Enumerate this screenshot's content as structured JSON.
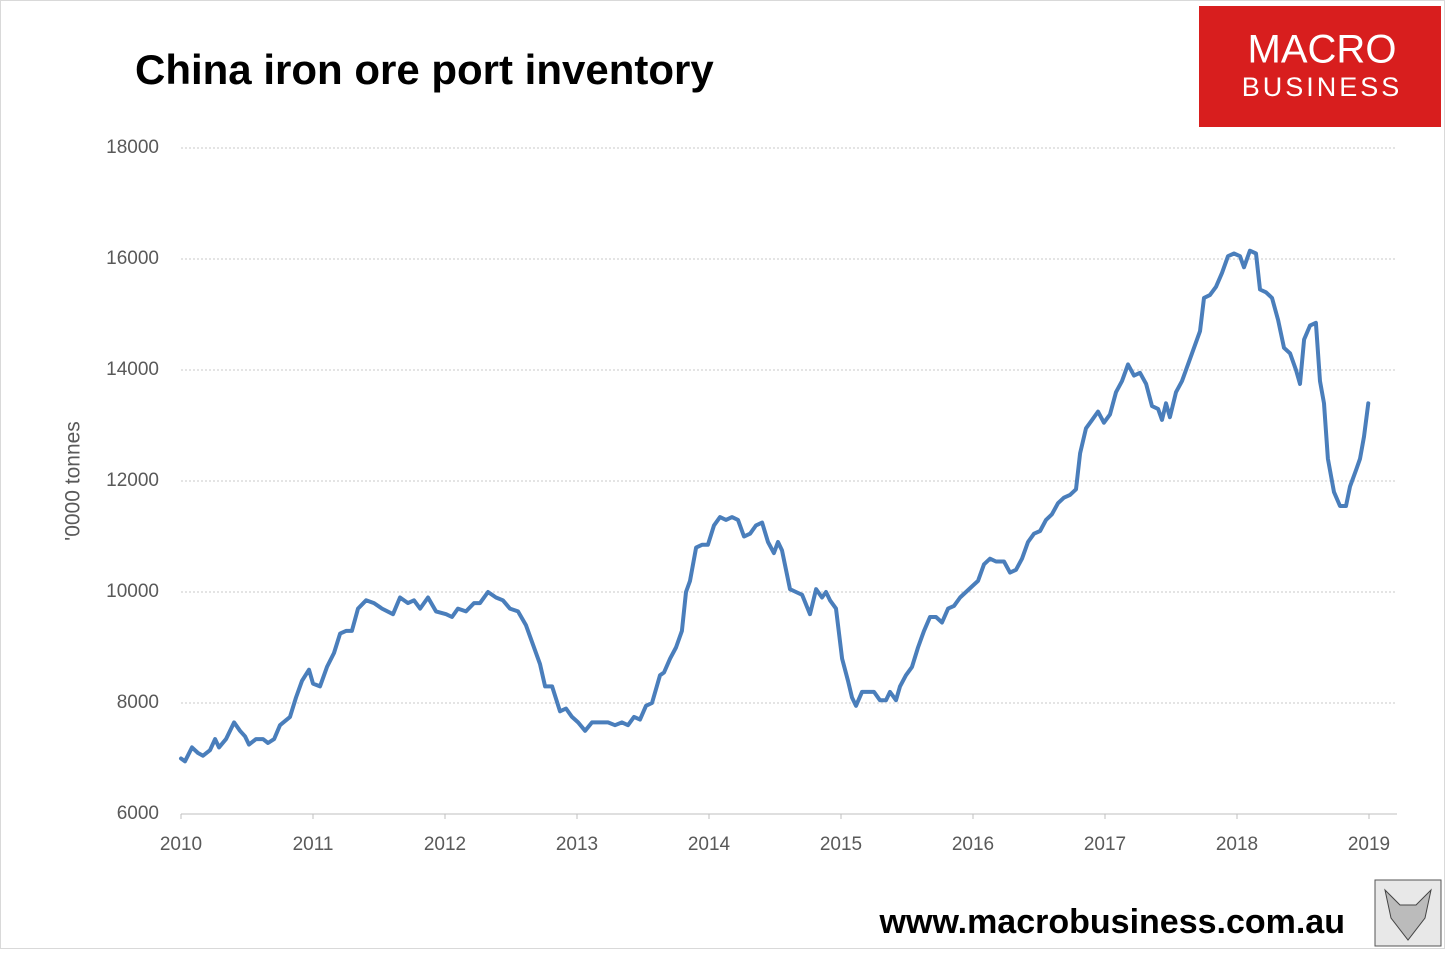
{
  "chart_data": {
    "type": "line",
    "title": "China iron ore port inventory",
    "y_label": "'0000 tonnes",
    "xlim": [
      2010,
      2019
    ],
    "xticks": [
      2010,
      2011,
      2012,
      2013,
      2014,
      2015,
      2016,
      2017,
      2018,
      2019
    ],
    "ylim": [
      6000,
      18000
    ],
    "yticks": [
      6000,
      8000,
      10000,
      12000,
      14000,
      16000,
      18000
    ],
    "grid": true,
    "x": [
      2010.0,
      2010.03,
      2010.083,
      2010.129,
      2010.167,
      2010.22,
      2010.258,
      2010.288,
      2010.341,
      2010.402,
      2010.447,
      2010.485,
      2010.515,
      2010.568,
      2010.621,
      2010.659,
      2010.705,
      2010.75,
      2010.826,
      2010.871,
      2010.917,
      2010.97,
      2011.0,
      2011.053,
      2011.106,
      2011.159,
      2011.205,
      2011.25,
      2011.295,
      2011.341,
      2011.402,
      2011.462,
      2011.523,
      2011.606,
      2011.659,
      2011.72,
      2011.765,
      2011.811,
      2011.871,
      2011.932,
      2012.008,
      2012.053,
      2012.098,
      2012.159,
      2012.22,
      2012.265,
      2012.326,
      2012.386,
      2012.439,
      2012.492,
      2012.553,
      2012.614,
      2012.667,
      2012.72,
      2012.758,
      2012.811,
      2012.871,
      2012.917,
      2012.962,
      2013.008,
      2013.061,
      2013.114,
      2013.174,
      2013.235,
      2013.288,
      2013.341,
      2013.386,
      2013.432,
      2013.477,
      2013.523,
      2013.568,
      2013.629,
      2013.659,
      2013.705,
      2013.75,
      2013.795,
      2013.826,
      2013.856,
      2013.902,
      2013.947,
      2013.992,
      2014.038,
      2014.083,
      2014.129,
      2014.174,
      2014.22,
      2014.265,
      2014.311,
      2014.356,
      2014.402,
      2014.447,
      2014.492,
      2014.523,
      2014.553,
      2014.614,
      2014.659,
      2014.705,
      2014.765,
      2014.811,
      2014.856,
      2014.886,
      2014.917,
      2014.962,
      2015.008,
      2015.053,
      2015.083,
      2015.114,
      2015.159,
      2015.205,
      2015.25,
      2015.295,
      2015.341,
      2015.371,
      2015.417,
      2015.447,
      2015.492,
      2015.538,
      2015.583,
      2015.629,
      2015.674,
      2015.72,
      2015.765,
      2015.811,
      2015.856,
      2015.902,
      2015.947,
      2015.992,
      2016.038,
      2016.083,
      2016.129,
      2016.174,
      2016.235,
      2016.28,
      2016.326,
      2016.371,
      2016.417,
      2016.462,
      2016.508,
      2016.553,
      2016.598,
      2016.644,
      2016.689,
      2016.735,
      2016.78,
      2016.811,
      2016.856,
      2016.902,
      2016.947,
      2016.992,
      2017.038,
      2017.083,
      2017.129,
      2017.174,
      2017.22,
      2017.265,
      2017.311,
      2017.356,
      2017.402,
      2017.432,
      2017.462,
      2017.492,
      2017.538,
      2017.583,
      2017.629,
      2017.674,
      2017.72,
      2017.75,
      2017.795,
      2017.841,
      2017.886,
      2017.932,
      2017.977,
      2018.023,
      2018.053,
      2018.098,
      2018.144,
      2018.174,
      2018.22,
      2018.265,
      2018.311,
      2018.356,
      2018.402,
      2018.447,
      2018.477,
      2018.508,
      2018.553,
      2018.598,
      2018.629,
      2018.659,
      2018.689,
      2018.735,
      2018.78,
      2018.826,
      2018.856,
      2018.902,
      2018.932,
      2018.962,
      2018.995
    ],
    "series": [
      {
        "color": "#4a7ebb",
        "values": [
          7000,
          6950,
          7200,
          7100,
          7050,
          7150,
          7350,
          7200,
          7350,
          7650,
          7500,
          7400,
          7250,
          7350,
          7350,
          7280,
          7350,
          7600,
          7750,
          8100,
          8400,
          8600,
          8350,
          8300,
          8650,
          8900,
          9250,
          9300,
          9300,
          9700,
          9850,
          9800,
          9700,
          9600,
          9900,
          9800,
          9850,
          9700,
          9900,
          9650,
          9600,
          9550,
          9700,
          9650,
          9800,
          9800,
          10000,
          9900,
          9850,
          9700,
          9650,
          9400,
          9050,
          8700,
          8300,
          8300,
          7850,
          7900,
          7750,
          7650,
          7500,
          7650,
          7650,
          7650,
          7600,
          7650,
          7600,
          7750,
          7700,
          7950,
          8000,
          8500,
          8550,
          8800,
          9000,
          9300,
          10000,
          10200,
          10800,
          10850,
          10850,
          11200,
          11350,
          11300,
          11350,
          11300,
          11000,
          11050,
          11200,
          11250,
          10900,
          10700,
          10900,
          10750,
          10050,
          10000,
          9950,
          9600,
          10050,
          9900,
          10000,
          9850,
          9700,
          8800,
          8400,
          8100,
          7950,
          8200,
          8200,
          8200,
          8050,
          8050,
          8200,
          8050,
          8300,
          8500,
          8650,
          9000,
          9300,
          9550,
          9550,
          9450,
          9700,
          9750,
          9900,
          10000,
          10100,
          10200,
          10500,
          10600,
          10550,
          10550,
          10350,
          10400,
          10600,
          10900,
          11050,
          11100,
          11300,
          11400,
          11600,
          11700,
          11750,
          11850,
          12500,
          12950,
          13100,
          13250,
          13050,
          13200,
          13600,
          13800,
          14100,
          13900,
          13950,
          13750,
          13350,
          13300,
          13100,
          13400,
          13150,
          13600,
          13800,
          14100,
          14400,
          14700,
          15300,
          15350,
          15500,
          15750,
          16050,
          16100,
          16050,
          15850,
          16150,
          16100,
          15450,
          15400,
          15300,
          14900,
          14400,
          14300,
          14000,
          13750,
          14550,
          14800,
          14850,
          13800,
          13400,
          12400,
          11800,
          11550,
          11550,
          11900,
          12200,
          12400,
          12800,
          13400
        ]
      }
    ]
  },
  "logo": {
    "line1": "MACRO",
    "line2": "BUSINESS"
  },
  "footer": {
    "url": "www.macrobusiness.com.au"
  }
}
